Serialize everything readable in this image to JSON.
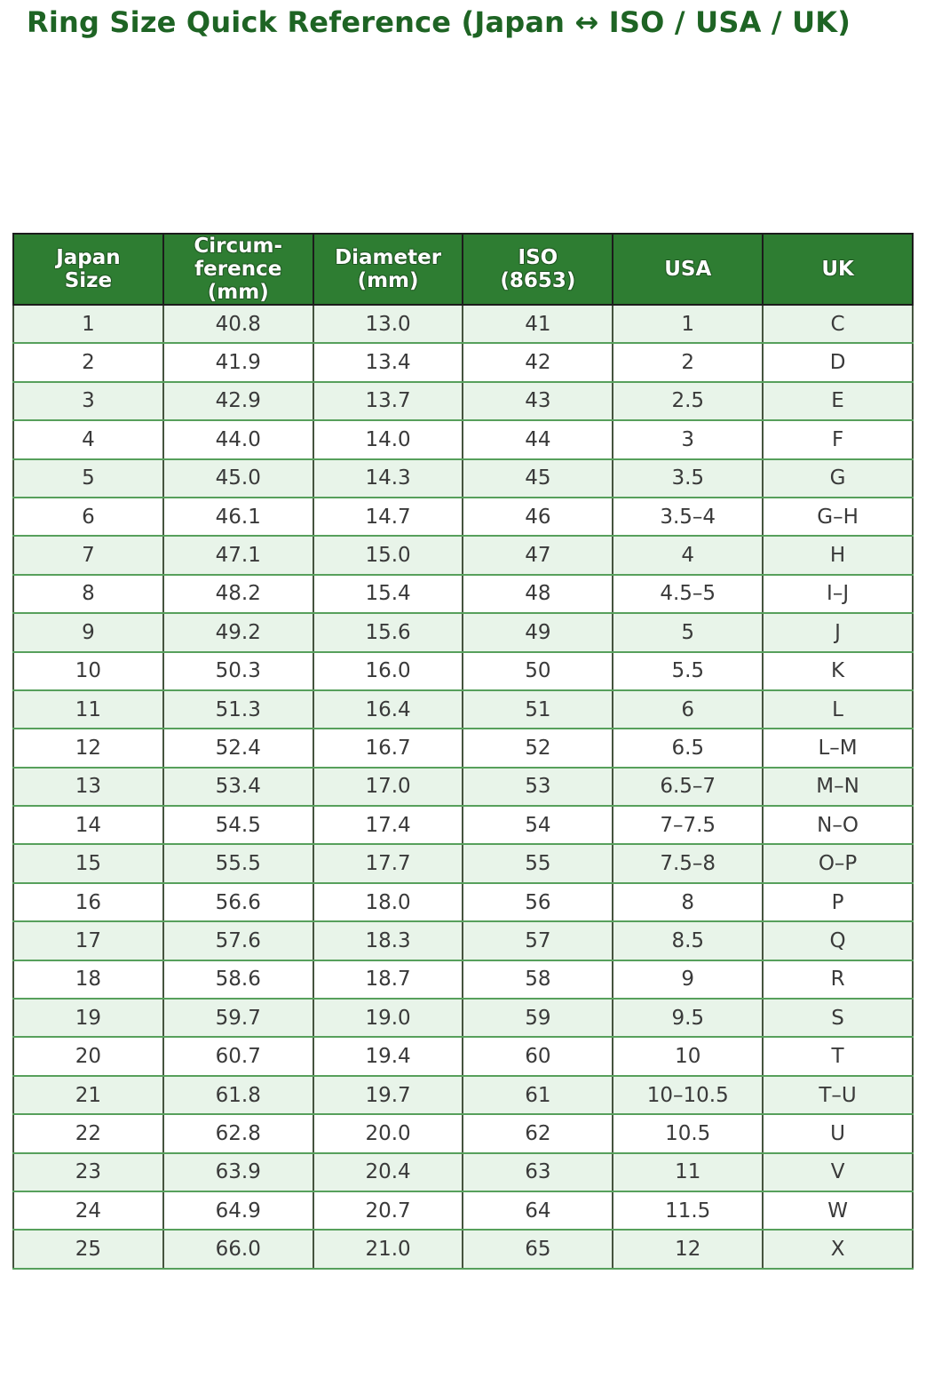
{
  "page_title": "Ring Size Quick Reference (Japan ↔ ISO / USA / UK)",
  "chart_data": {
    "type": "table",
    "title": "Ring Size Quick Reference (Japan ↔ ISO / USA / UK)",
    "columns": [
      "Japan\nSize",
      "Circum-\nference\n(mm)",
      "Diameter\n(mm)",
      "ISO\n(8653)",
      "USA",
      "UK"
    ],
    "rows": [
      [
        "1",
        "40.8",
        "13.0",
        "41",
        "1",
        "C"
      ],
      [
        "2",
        "41.9",
        "13.4",
        "42",
        "2",
        "D"
      ],
      [
        "3",
        "42.9",
        "13.7",
        "43",
        "2.5",
        "E"
      ],
      [
        "4",
        "44.0",
        "14.0",
        "44",
        "3",
        "F"
      ],
      [
        "5",
        "45.0",
        "14.3",
        "45",
        "3.5",
        "G"
      ],
      [
        "6",
        "46.1",
        "14.7",
        "46",
        "3.5–4",
        "G–H"
      ],
      [
        "7",
        "47.1",
        "15.0",
        "47",
        "4",
        "H"
      ],
      [
        "8",
        "48.2",
        "15.4",
        "48",
        "4.5–5",
        "I–J"
      ],
      [
        "9",
        "49.2",
        "15.6",
        "49",
        "5",
        "J"
      ],
      [
        "10",
        "50.3",
        "16.0",
        "50",
        "5.5",
        "K"
      ],
      [
        "11",
        "51.3",
        "16.4",
        "51",
        "6",
        "L"
      ],
      [
        "12",
        "52.4",
        "16.7",
        "52",
        "6.5",
        "L–M"
      ],
      [
        "13",
        "53.4",
        "17.0",
        "53",
        "6.5–7",
        "M–N"
      ],
      [
        "14",
        "54.5",
        "17.4",
        "54",
        "7–7.5",
        "N–O"
      ],
      [
        "15",
        "55.5",
        "17.7",
        "55",
        "7.5–8",
        "O–P"
      ],
      [
        "16",
        "56.6",
        "18.0",
        "56",
        "8",
        "P"
      ],
      [
        "17",
        "57.6",
        "18.3",
        "57",
        "8.5",
        "Q"
      ],
      [
        "18",
        "58.6",
        "18.7",
        "58",
        "9",
        "R"
      ],
      [
        "19",
        "59.7",
        "19.0",
        "59",
        "9.5",
        "S"
      ],
      [
        "20",
        "60.7",
        "19.4",
        "60",
        "10",
        "T"
      ],
      [
        "21",
        "61.8",
        "19.7",
        "61",
        "10–10.5",
        "T–U"
      ],
      [
        "22",
        "62.8",
        "20.0",
        "62",
        "10.5",
        "U"
      ],
      [
        "23",
        "63.9",
        "20.4",
        "63",
        "11",
        "V"
      ],
      [
        "24",
        "64.9",
        "20.7",
        "64",
        "11.5",
        "W"
      ],
      [
        "25",
        "66.0",
        "21.0",
        "65",
        "12",
        "X"
      ]
    ],
    "striped": true,
    "layout_hints": "header row dark green with white bold text; odd data rows shaded light green, even rows white; all cells center-aligned"
  },
  "colors": {
    "title_text": "#1e6424",
    "header_bg": "#2e7d32",
    "header_text": "#ffffff",
    "header_border": "#1c1c1c",
    "row_alt_bg": "#e8f4e9",
    "row_bg": "#ffffff",
    "vertical_border": "#46543f",
    "horizontal_border": "#57a05c",
    "cell_text": "#3a3a3a"
  }
}
